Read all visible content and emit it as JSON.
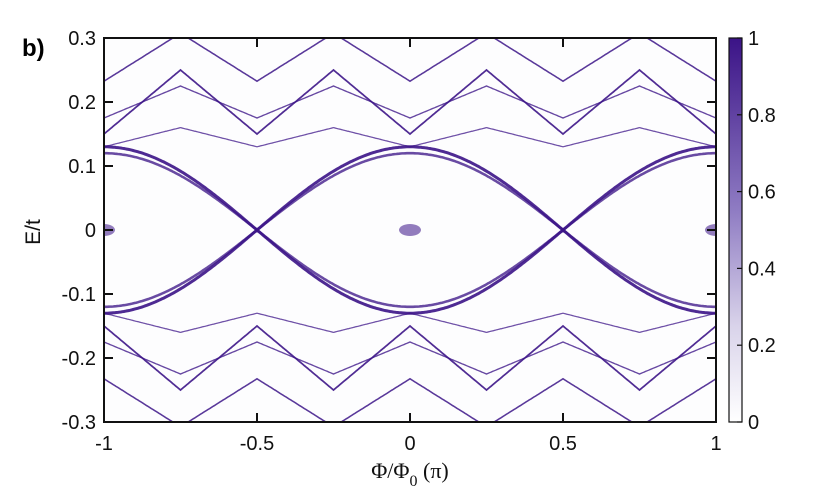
{
  "chart_data": {
    "type": "heatmap",
    "panel_label": "b)",
    "title": "",
    "xlabel": {
      "main": "Φ/Φ",
      "sub": "0",
      "suffix": " (π)"
    },
    "ylabel": "E/t",
    "xlim": [
      -1,
      1
    ],
    "ylim": [
      -0.3,
      0.3
    ],
    "x_ticks": [
      -1,
      -0.5,
      0,
      0.5,
      1
    ],
    "x_tick_labels": [
      "-1",
      "-0.5",
      "0",
      "0.5",
      "1"
    ],
    "y_ticks": [
      -0.3,
      -0.2,
      -0.1,
      0,
      0.1,
      0.2,
      0.3
    ],
    "y_tick_labels": [
      "-0.3",
      "-0.2",
      "-0.1",
      "0",
      "0.1",
      "0.2",
      "0.3"
    ],
    "colorbar": {
      "range": [
        0,
        1
      ],
      "ticks": [
        0,
        0.2,
        0.4,
        0.6,
        0.8,
        1
      ],
      "tick_labels": [
        "0",
        "0.2",
        "0.4",
        "0.6",
        "0.8",
        "1"
      ],
      "color_low": "#ffffff",
      "color_high": "#3b1387"
    },
    "grid": false,
    "series": [
      {
        "amplitude": 0.13,
        "period": 1.0,
        "phase": 0.5,
        "offset": 0.0,
        "sign": 1,
        "weight": 1.0
      },
      {
        "amplitude": 0.13,
        "period": 1.0,
        "phase": 0.5,
        "offset": 0.0,
        "sign": -1,
        "weight": 1.0
      },
      {
        "amplitude": 0.12,
        "period": 1.0,
        "phase": 0.5,
        "offset": 0.0,
        "sign": 1,
        "weight": 0.85
      },
      {
        "amplitude": 0.12,
        "period": 1.0,
        "phase": 0.5,
        "offset": 0.0,
        "sign": -1,
        "weight": 0.85
      },
      {
        "slope": 0.2,
        "intercept": 0.2,
        "weight": 0.7,
        "kind": "cross"
      },
      {
        "slope": 0.2,
        "intercept": -0.2,
        "weight": 0.7,
        "kind": "cross"
      },
      {
        "slope": 0.15,
        "intercept": 0.27,
        "weight": 0.6,
        "kind": "cross"
      },
      {
        "slope": 0.15,
        "intercept": -0.27,
        "weight": 0.6,
        "kind": "cross"
      },
      {
        "slope": 0.06,
        "intercept": 0.145,
        "weight": 0.45,
        "kind": "cross"
      },
      {
        "slope": 0.06,
        "intercept": -0.145,
        "weight": 0.45,
        "kind": "cross"
      },
      {
        "slope": 0.1,
        "intercept": 0.2,
        "weight": 0.5,
        "kind": "cross"
      },
      {
        "slope": 0.1,
        "intercept": -0.2,
        "weight": 0.5,
        "kind": "cross"
      }
    ]
  }
}
